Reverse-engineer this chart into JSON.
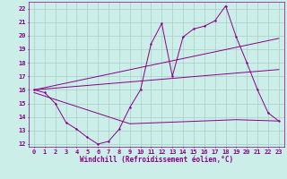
{
  "xlabel": "Windchill (Refroidissement éolien,°C)",
  "background_color": "#cceee8",
  "grid_color": "#aaccc8",
  "line_color": "#880088",
  "xlim": [
    -0.5,
    23.5
  ],
  "ylim": [
    11.8,
    22.5
  ],
  "yticks": [
    12,
    13,
    14,
    15,
    16,
    17,
    18,
    19,
    20,
    21,
    22
  ],
  "xticks": [
    0,
    1,
    2,
    3,
    4,
    5,
    6,
    7,
    8,
    9,
    10,
    11,
    12,
    13,
    14,
    15,
    16,
    17,
    18,
    19,
    20,
    21,
    22,
    23
  ],
  "series1_x": [
    0,
    1,
    2,
    3,
    4,
    5,
    6,
    7,
    8,
    9,
    10,
    11,
    12,
    13,
    14,
    15,
    16,
    17,
    18,
    19,
    20,
    21,
    22,
    23
  ],
  "series1_y": [
    16.0,
    15.8,
    15.0,
    13.6,
    13.1,
    12.5,
    12.0,
    12.2,
    13.1,
    14.7,
    16.0,
    19.4,
    20.9,
    17.0,
    19.9,
    20.5,
    20.7,
    21.1,
    22.2,
    19.9,
    18.0,
    16.0,
    14.3,
    13.7
  ],
  "series2_x": [
    0,
    23
  ],
  "series2_y": [
    16.0,
    19.8
  ],
  "series3_x": [
    0,
    23
  ],
  "series3_y": [
    16.0,
    17.5
  ],
  "series4_x": [
    0,
    9,
    19,
    23
  ],
  "series4_y": [
    15.8,
    13.5,
    13.8,
    13.7
  ]
}
